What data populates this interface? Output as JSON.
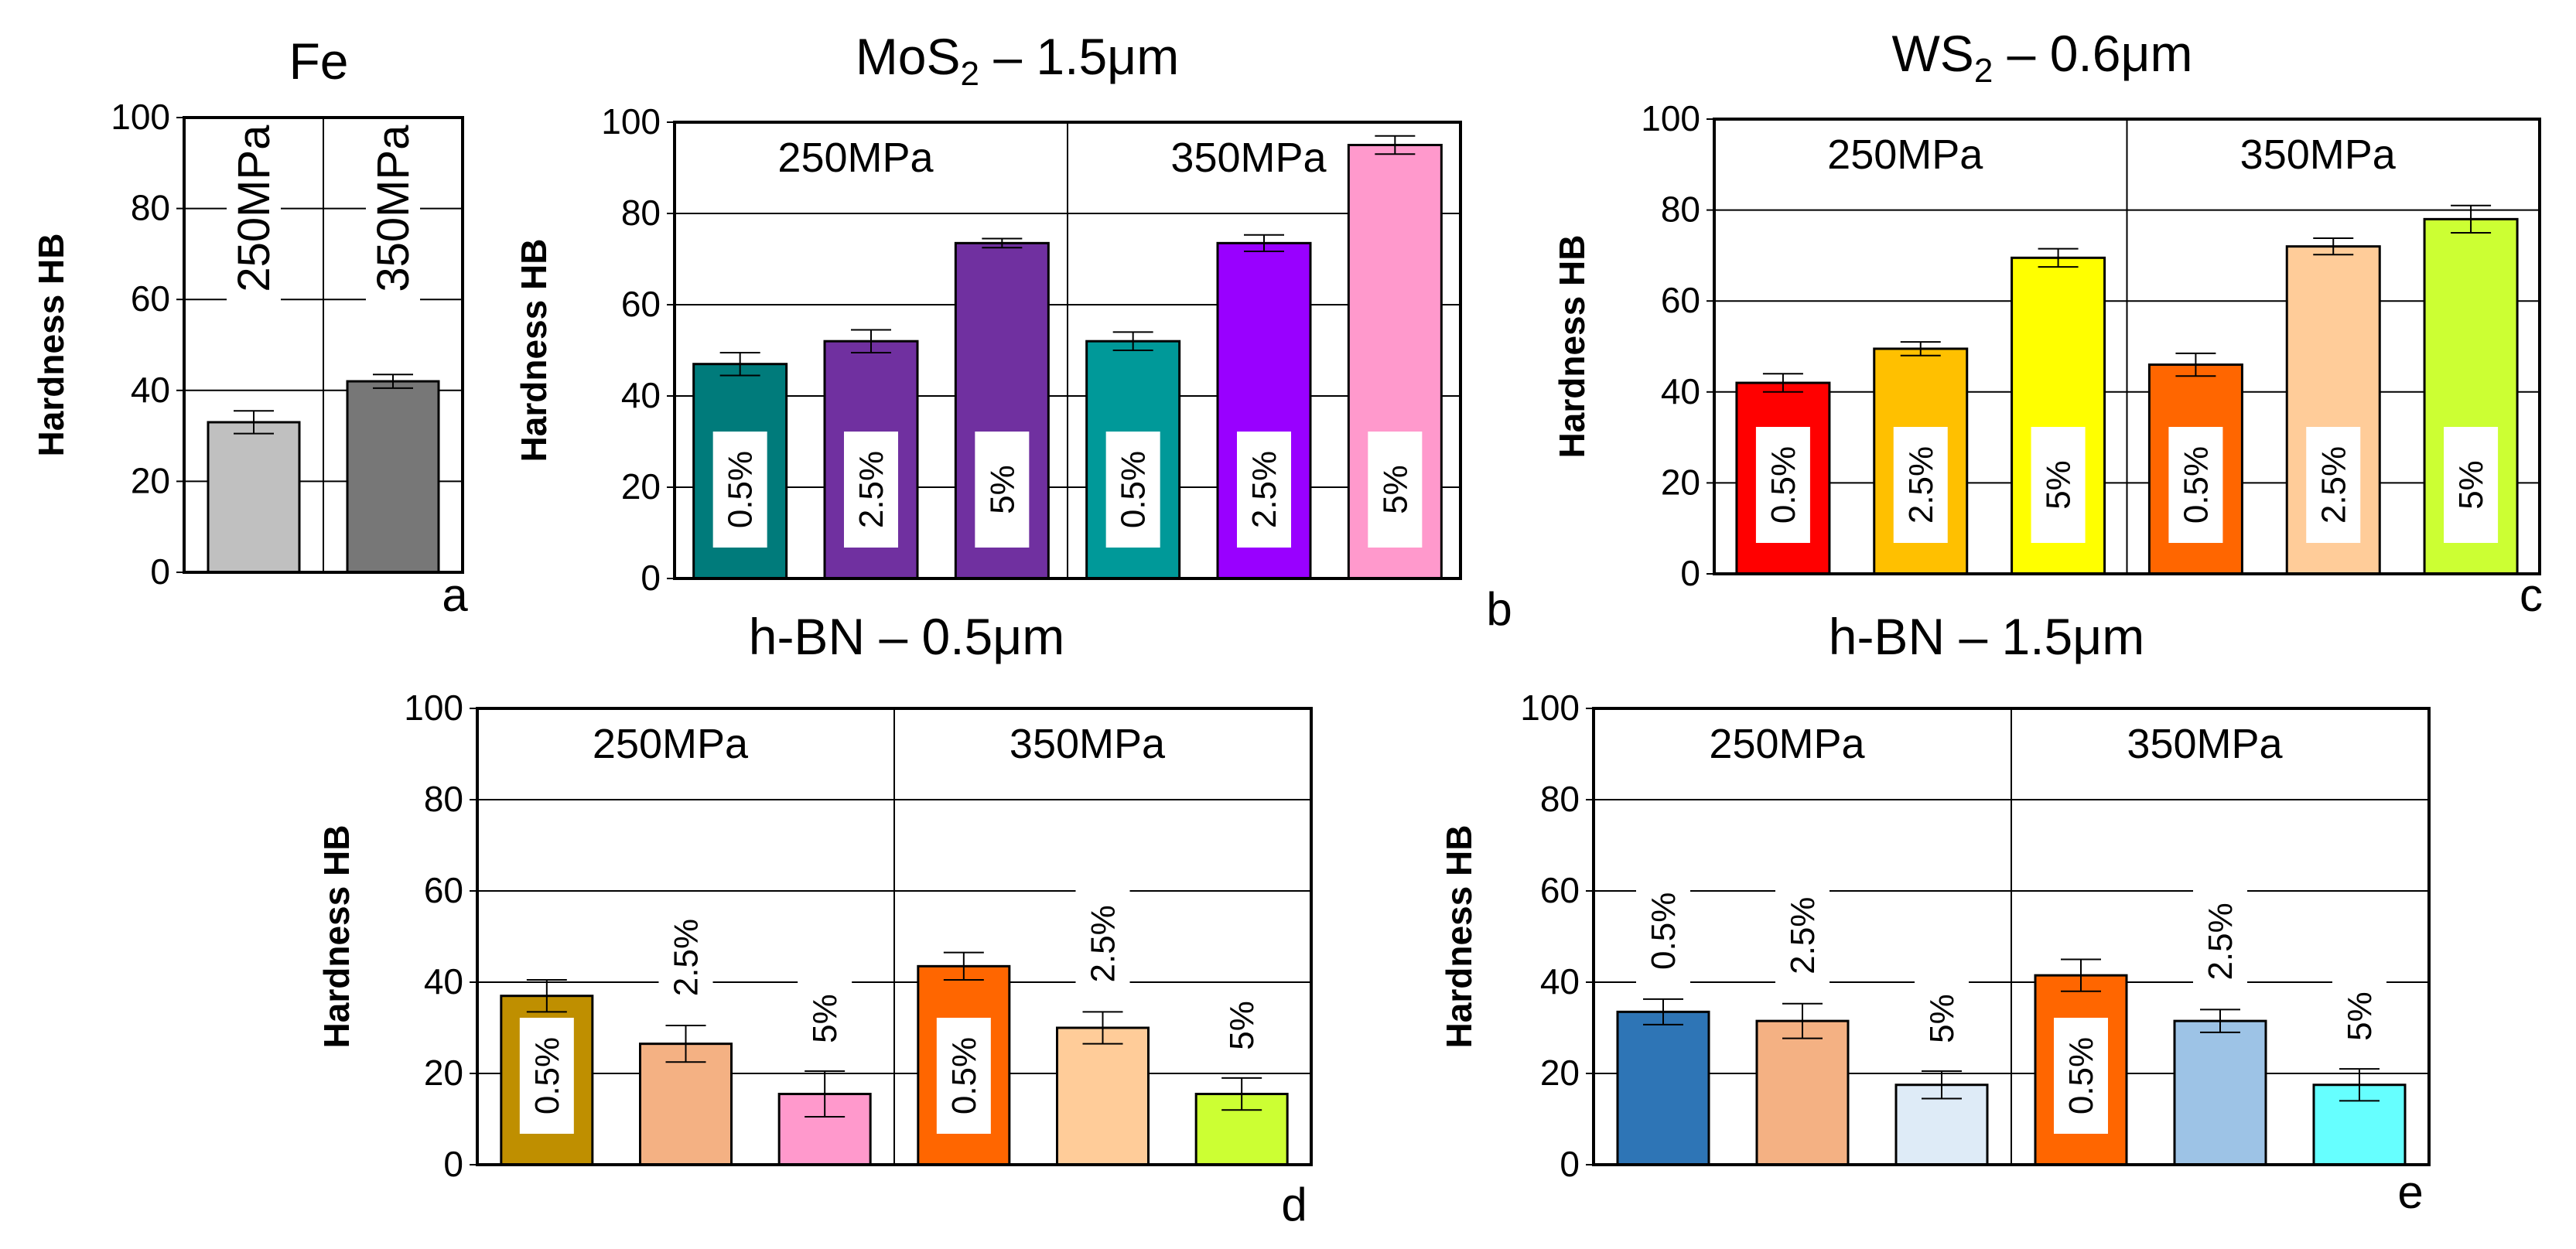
{
  "chart_data": [
    {
      "id": "a",
      "type": "bar",
      "title": "Fe",
      "ylabel": "Hardness HB",
      "panel_letter": "a",
      "ylim": [
        0,
        100
      ],
      "yticks": [
        0,
        20,
        40,
        60,
        80,
        100
      ],
      "groups": [],
      "bars": [
        {
          "value": 33,
          "error": 2.5,
          "color": "#c0c0c0",
          "label": "250MPa",
          "label_style": "rot_top"
        },
        {
          "value": 42,
          "error": 1.5,
          "color": "#777777",
          "label": "350MPa",
          "label_style": "rot_top"
        }
      ]
    },
    {
      "id": "b",
      "type": "bar",
      "title": "MoS",
      "title_sub": "2",
      "title_rest": " – 1.5μm",
      "ylabel": "Hardness HB",
      "panel_letter": "b",
      "ylim": [
        0,
        100
      ],
      "yticks": [
        0,
        20,
        40,
        60,
        80,
        100
      ],
      "groups": [
        "250MPa",
        "350MPa"
      ],
      "bars": [
        {
          "value": 47,
          "error": 2.5,
          "color": "#007b7b",
          "label": "0.5%",
          "label_style": "box"
        },
        {
          "value": 52,
          "error": 2.5,
          "color": "#7030a0",
          "label": "2.5%",
          "label_style": "box"
        },
        {
          "value": 73.5,
          "error": 1.0,
          "color": "#7030a0",
          "label": "5%",
          "label_style": "box"
        },
        {
          "value": 52,
          "error": 2.0,
          "color": "#009999",
          "label": "0.5%",
          "label_style": "box"
        },
        {
          "value": 73.5,
          "error": 1.8,
          "color": "#9900ff",
          "label": "2.5%",
          "label_style": "box"
        },
        {
          "value": 95,
          "error": 2.0,
          "color": "#ff99cc",
          "label": "5%",
          "label_style": "box"
        }
      ]
    },
    {
      "id": "c",
      "type": "bar",
      "title": "WS",
      "title_sub": "2",
      "title_rest": " – 0.6μm",
      "ylabel": "Hardness HB",
      "panel_letter": "c",
      "ylim": [
        0,
        100
      ],
      "yticks": [
        0,
        20,
        40,
        60,
        80,
        100
      ],
      "groups": [
        "250MPa",
        "350MPa"
      ],
      "bars": [
        {
          "value": 42,
          "error": 2.0,
          "color": "#ff0000",
          "label": "0.5%",
          "label_style": "box"
        },
        {
          "value": 49.5,
          "error": 1.5,
          "color": "#ffc000",
          "label": "2.5%",
          "label_style": "box"
        },
        {
          "value": 69.5,
          "error": 2.0,
          "color": "#ffff00",
          "label": "5%",
          "label_style": "box"
        },
        {
          "value": 46,
          "error": 2.5,
          "color": "#ff6600",
          "label": "0.5%",
          "label_style": "box"
        },
        {
          "value": 72,
          "error": 1.8,
          "color": "#ffcc99",
          "label": "2.5%",
          "label_style": "box"
        },
        {
          "value": 78,
          "error": 3.0,
          "color": "#ccff33",
          "label": "5%",
          "label_style": "box"
        }
      ]
    },
    {
      "id": "d",
      "type": "bar",
      "title": "h-BN – 0.5μm",
      "ylabel": "Hardness HB",
      "panel_letter": "d",
      "ylim": [
        0,
        100
      ],
      "yticks": [
        0,
        20,
        40,
        60,
        80,
        100
      ],
      "groups": [
        "250MPa",
        "350MPa"
      ],
      "bars": [
        {
          "value": 37,
          "error": 3.5,
          "color": "#bf8f00",
          "label": "0.5%",
          "label_style": "box"
        },
        {
          "value": 26.5,
          "error": 4.0,
          "color": "#f4b183",
          "label": "2.5%",
          "label_style": "above"
        },
        {
          "value": 15.5,
          "error": 5.0,
          "color": "#ff99cc",
          "label": "5%",
          "label_style": "above"
        },
        {
          "value": 43.5,
          "error": 3.0,
          "color": "#ff6600",
          "label": "0.5%",
          "label_style": "box"
        },
        {
          "value": 30,
          "error": 3.5,
          "color": "#ffcc99",
          "label": "2.5%",
          "label_style": "above"
        },
        {
          "value": 15.5,
          "error": 3.5,
          "color": "#ccff33",
          "label": "5%",
          "label_style": "above"
        }
      ]
    },
    {
      "id": "e",
      "type": "bar",
      "title": "h-BN – 1.5μm",
      "ylabel": "Hardness HB",
      "panel_letter": "e",
      "ylim": [
        0,
        100
      ],
      "yticks": [
        0,
        20,
        40,
        60,
        80,
        100
      ],
      "groups": [
        "250MPa",
        "350MPa"
      ],
      "bars": [
        {
          "value": 33.5,
          "error": 2.8,
          "color": "#2e75b6",
          "label": "0.5%",
          "label_style": "above"
        },
        {
          "value": 31.5,
          "error": 3.8,
          "color": "#f4b183",
          "label": "2.5%",
          "label_style": "above"
        },
        {
          "value": 17.5,
          "error": 3.0,
          "color": "#deebf7",
          "label": "5%",
          "label_style": "above"
        },
        {
          "value": 41.5,
          "error": 3.5,
          "color": "#ff6600",
          "label": "0.5%",
          "label_style": "box"
        },
        {
          "value": 31.5,
          "error": 2.5,
          "color": "#9dc3e6",
          "label": "2.5%",
          "label_style": "above"
        },
        {
          "value": 17.5,
          "error": 3.5,
          "color": "#66ffff",
          "label": "5%",
          "label_style": "above"
        }
      ]
    }
  ]
}
